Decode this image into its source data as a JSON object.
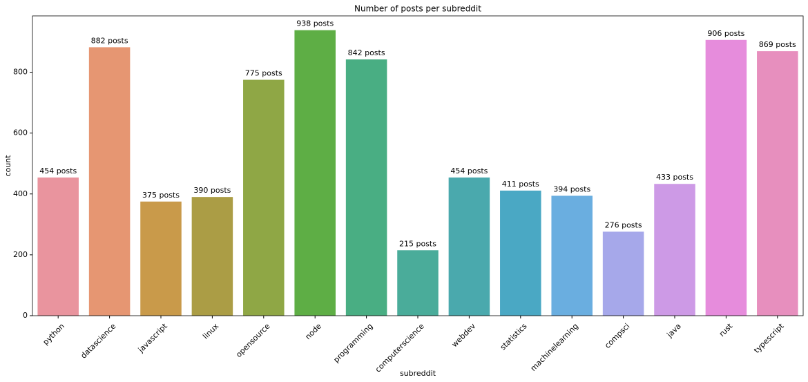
{
  "chart_data": {
    "type": "bar",
    "title": "Number of posts per subreddit",
    "x_label": "subreddit",
    "y_label": "count",
    "categories": [
      "python",
      "datascience",
      "javascript",
      "linux",
      "opensource",
      "node",
      "programming",
      "computerscience",
      "webdev",
      "statistics",
      "machinelearning",
      "compsci",
      "java",
      "rust",
      "typescript"
    ],
    "values": [
      454,
      882,
      375,
      390,
      775,
      938,
      842,
      215,
      454,
      411,
      394,
      276,
      433,
      906,
      869
    ],
    "value_labels": [
      "454 posts",
      "882 posts",
      "375 posts",
      "390 posts",
      "775 posts",
      "938 posts",
      "842 posts",
      "215 posts",
      "454 posts",
      "411 posts",
      "394 posts",
      "276 posts",
      "433 posts",
      "906 posts",
      "869 posts"
    ],
    "colors": [
      "#e9949e",
      "#e69672",
      "#c99a4a",
      "#ab9d45",
      "#8fa745",
      "#5eae45",
      "#49ae83",
      "#4aac9a",
      "#4aa9ad",
      "#4aa8c4",
      "#6aaee0",
      "#a6a8ea",
      "#cd9ae6",
      "#e68cdc",
      "#e78fbe"
    ],
    "ylim": [
      0,
      985
    ],
    "yticks": [
      0,
      200,
      400,
      600,
      800
    ]
  }
}
